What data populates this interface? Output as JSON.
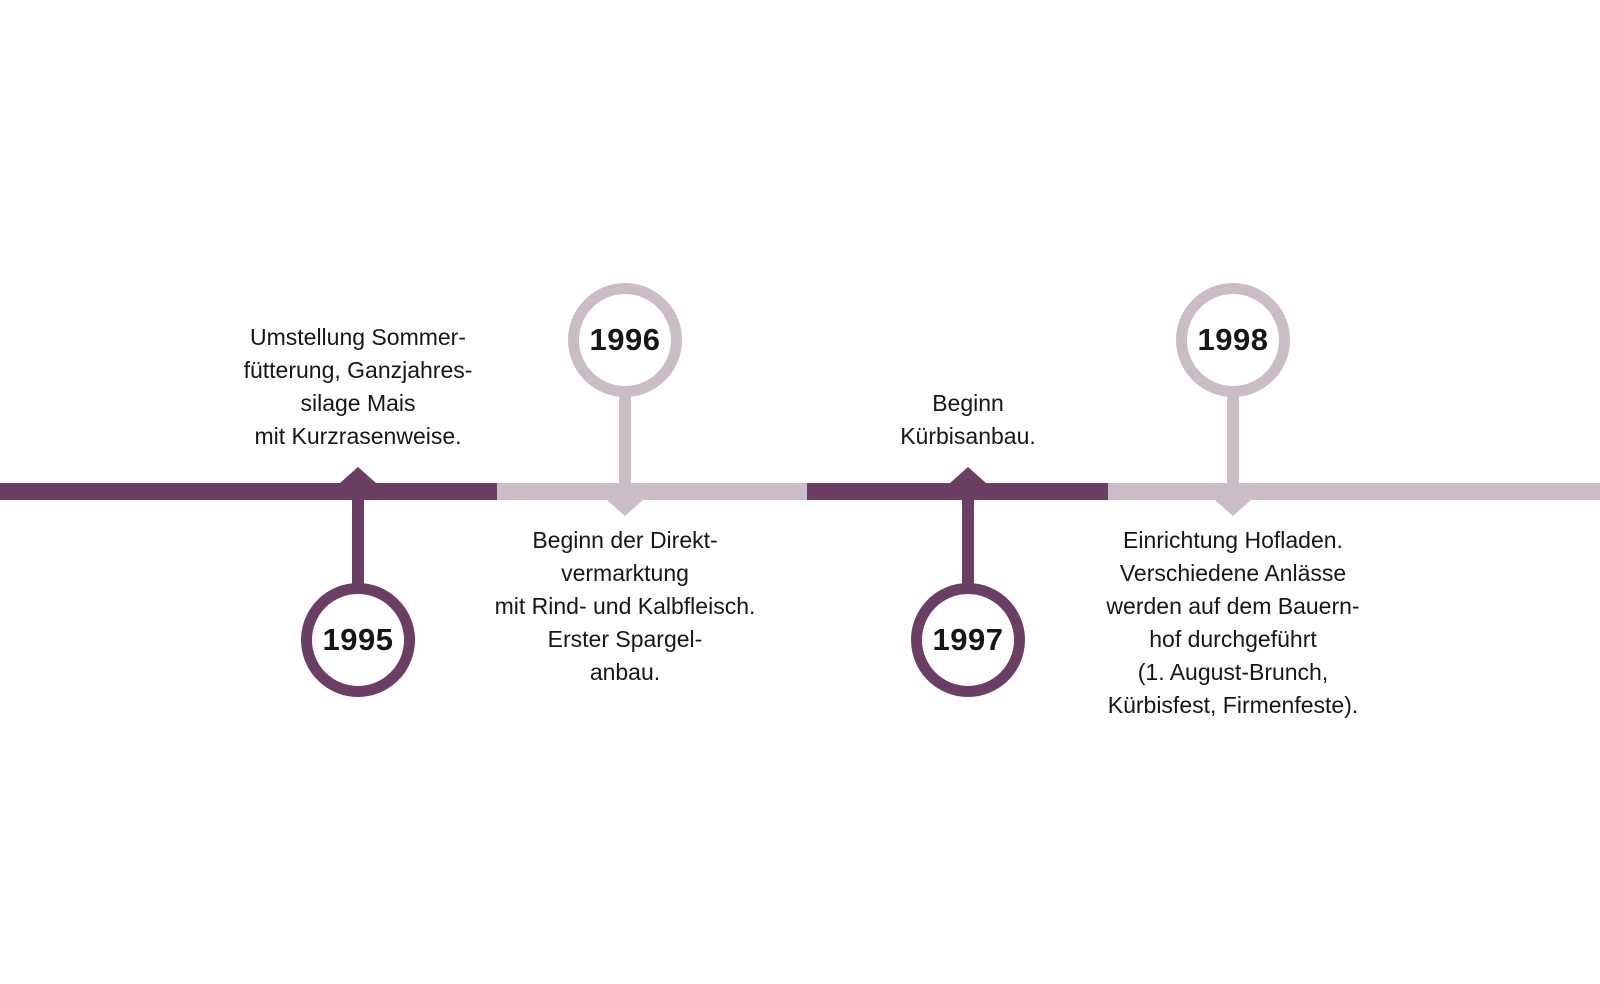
{
  "timeline": {
    "colors": {
      "dark": "#6b3e63",
      "light": "#cbbdc6",
      "text": "#161616",
      "background": "#ffffff"
    },
    "events": [
      {
        "year": "1995",
        "theme": "dark",
        "circle_position": "below-line",
        "description": "Umstellung Sommer-\nfütterung, Ganzjahres-\nsilage Mais\nmit Kurzrasenweise."
      },
      {
        "year": "1996",
        "theme": "light",
        "circle_position": "above-line",
        "description": "Beginn der Direkt-\nvermarktung\nmit Rind- und Kalbfleisch.\nErster Spargel-\nanbau."
      },
      {
        "year": "1997",
        "theme": "dark",
        "circle_position": "below-line",
        "description": "Beginn\nKürbisanbau."
      },
      {
        "year": "1998",
        "theme": "light",
        "circle_position": "above-line",
        "description": "Einrichtung Hofladen.\nVerschiedene Anlässe\nwerden auf dem Bauern-\nhof durchgeführt\n(1. August-Brunch,\nKürbisfest, Firmenfeste)."
      }
    ]
  }
}
